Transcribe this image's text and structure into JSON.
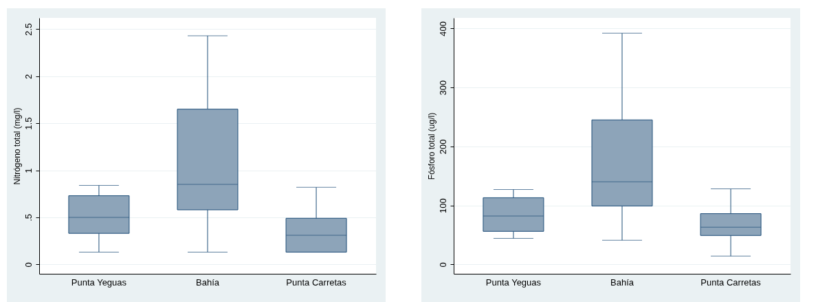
{
  "chart_data": [
    {
      "type": "box",
      "ylabel": "Nitrógeno total (mg/l)",
      "categories": [
        "Punta Yeguas",
        "Bahía",
        "Punta Carretas"
      ],
      "ylim": [
        -0.1,
        2.62
      ],
      "yticks": [
        0,
        {
          "value": 0.5,
          "label": ".5"
        },
        1,
        1.5,
        2,
        2.5
      ],
      "grid": "y",
      "color": "#8da4b9",
      "boxes": [
        {
          "low": 0.13,
          "q1": 0.33,
          "median": 0.5,
          "q3": 0.73,
          "high": 0.84
        },
        {
          "low": 0.13,
          "q1": 0.58,
          "median": 0.85,
          "q3": 1.65,
          "high": 2.43
        },
        {
          "low": 0.13,
          "q1": 0.13,
          "median": 0.31,
          "q3": 0.49,
          "high": 0.82
        }
      ]
    },
    {
      "type": "box",
      "ylabel": "Fósforo total (ug/l)",
      "categories": [
        "Punta Yeguas",
        "Bahía",
        "Punta Carretas"
      ],
      "ylim": [
        -16,
        418
      ],
      "yticks": [
        0,
        100,
        200,
        300,
        400
      ],
      "grid": "y",
      "color": "#8da4b9",
      "boxes": [
        {
          "low": 44,
          "q1": 56,
          "median": 82,
          "q3": 113,
          "high": 127
        },
        {
          "low": 41,
          "q1": 99,
          "median": 140,
          "q3": 245,
          "high": 392
        },
        {
          "low": 14,
          "q1": 49,
          "median": 63,
          "q3": 86,
          "high": 128
        }
      ]
    }
  ]
}
